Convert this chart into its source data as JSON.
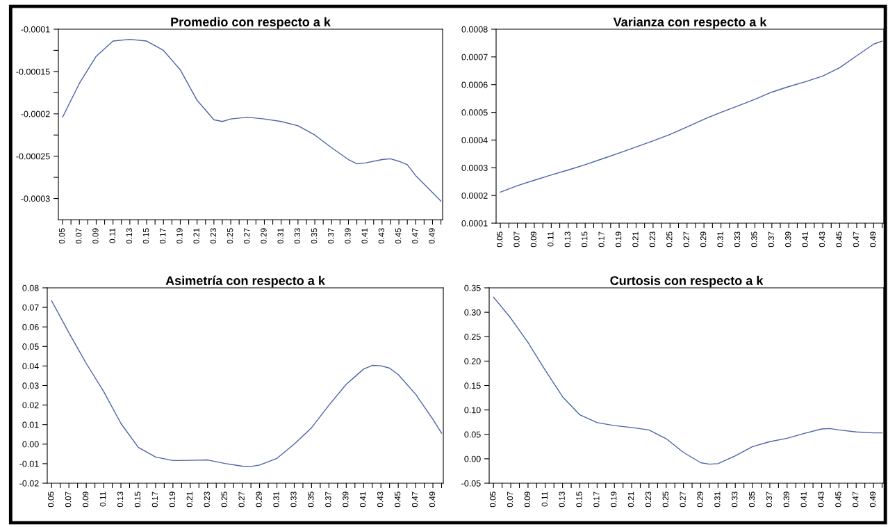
{
  "chart_data": [
    {
      "type": "line",
      "title": "Promedio con respecto a k",
      "x": [
        0.05,
        0.07,
        0.09,
        0.11,
        0.13,
        0.15,
        0.17,
        0.19,
        0.21,
        0.23,
        0.24,
        0.25,
        0.27,
        0.29,
        0.31,
        0.33,
        0.35,
        0.37,
        0.39,
        0.4,
        0.41,
        0.43,
        0.44,
        0.45,
        0.46,
        0.47,
        0.49,
        0.5
      ],
      "series": [
        {
          "color": "#4a62a8",
          "values": [
            -0.000204,
            -0.000164,
            -0.000132,
            -0.000114,
            -0.000112,
            -0.000114,
            -0.000125,
            -0.000148,
            -0.000184,
            -0.000207,
            -0.000209,
            -0.000206,
            -0.000204,
            -0.000206,
            -0.000209,
            -0.000214,
            -0.000225,
            -0.00024,
            -0.000254,
            -0.000259,
            -0.000258,
            -0.000254,
            -0.000253,
            -0.000256,
            -0.00026,
            -0.000273,
            -0.000293,
            -0.000303
          ]
        }
      ],
      "xlim": [
        0.045,
        0.502
      ],
      "xticks": [
        {
          "value": 0.05,
          "label": "0.05"
        },
        {
          "value": 0.06,
          "label": null
        },
        {
          "value": 0.07,
          "label": "0.07"
        },
        {
          "value": 0.08,
          "label": null
        },
        {
          "value": 0.09,
          "label": "0.09"
        },
        {
          "value": 0.1,
          "label": null
        },
        {
          "value": 0.11,
          "label": "0.11"
        },
        {
          "value": 0.12,
          "label": null
        },
        {
          "value": 0.13,
          "label": "0.13"
        },
        {
          "value": 0.14,
          "label": null
        },
        {
          "value": 0.15,
          "label": "0.15"
        },
        {
          "value": 0.16,
          "label": null
        },
        {
          "value": 0.17,
          "label": "0.17"
        },
        {
          "value": 0.18,
          "label": null
        },
        {
          "value": 0.19,
          "label": "0.19"
        },
        {
          "value": 0.2,
          "label": null
        },
        {
          "value": 0.21,
          "label": "0.21"
        },
        {
          "value": 0.22,
          "label": null
        },
        {
          "value": 0.23,
          "label": "0.23"
        },
        {
          "value": 0.24,
          "label": null
        },
        {
          "value": 0.25,
          "label": "0.25"
        },
        {
          "value": 0.26,
          "label": null
        },
        {
          "value": 0.27,
          "label": "0.27"
        },
        {
          "value": 0.28,
          "label": null
        },
        {
          "value": 0.29,
          "label": "0.29"
        },
        {
          "value": 0.3,
          "label": null
        },
        {
          "value": 0.31,
          "label": "0.31"
        },
        {
          "value": 0.32,
          "label": null
        },
        {
          "value": 0.33,
          "label": "0.33"
        },
        {
          "value": 0.34,
          "label": null
        },
        {
          "value": 0.35,
          "label": "0.35"
        },
        {
          "value": 0.36,
          "label": null
        },
        {
          "value": 0.37,
          "label": "0.37"
        },
        {
          "value": 0.38,
          "label": null
        },
        {
          "value": 0.39,
          "label": "0.39"
        },
        {
          "value": 0.4,
          "label": null
        },
        {
          "value": 0.41,
          "label": "0.41"
        },
        {
          "value": 0.42,
          "label": null
        },
        {
          "value": 0.43,
          "label": "0.43"
        },
        {
          "value": 0.44,
          "label": null
        },
        {
          "value": 0.45,
          "label": "0.45"
        },
        {
          "value": 0.46,
          "label": null
        },
        {
          "value": 0.47,
          "label": "0.47"
        },
        {
          "value": 0.48,
          "label": null
        },
        {
          "value": 0.49,
          "label": "0.49"
        },
        {
          "value": 0.5,
          "label": null
        }
      ],
      "ylim": [
        -0.000325,
        -0.0001
      ],
      "yticks": [
        {
          "value": -0.0001,
          "label": "-0.0001"
        },
        {
          "value": -0.000125,
          "label": null
        },
        {
          "value": -0.00015,
          "label": "-0.00015"
        },
        {
          "value": -0.000175,
          "label": null
        },
        {
          "value": -0.0002,
          "label": "-0.0002"
        },
        {
          "value": -0.000225,
          "label": null
        },
        {
          "value": -0.00025,
          "label": "-0.00025"
        },
        {
          "value": -0.000275,
          "label": null
        },
        {
          "value": -0.0003,
          "label": "-0.0003"
        }
      ]
    },
    {
      "type": "line",
      "title": "Varianza con respecto a k",
      "x": [
        0.05,
        0.07,
        0.09,
        0.11,
        0.13,
        0.15,
        0.17,
        0.19,
        0.21,
        0.23,
        0.25,
        0.27,
        0.29,
        0.31,
        0.33,
        0.35,
        0.37,
        0.39,
        0.41,
        0.43,
        0.45,
        0.47,
        0.49,
        0.5
      ],
      "series": [
        {
          "color": "#4a62a8",
          "values": [
            0.000212,
            0.000235,
            0.000255,
            0.000274,
            0.000292,
            0.000311,
            0.000332,
            0.000353,
            0.000375,
            0.000397,
            0.00042,
            0.000447,
            0.000475,
            0.0005,
            0.000523,
            0.000547,
            0.000573,
            0.000593,
            0.000611,
            0.000631,
            0.000661,
            0.000704,
            0.000746,
            0.000757
          ]
        }
      ],
      "xlim": [
        0.045,
        0.502
      ],
      "xticks": [
        {
          "value": 0.05,
          "label": "0.05"
        },
        {
          "value": 0.06,
          "label": null
        },
        {
          "value": 0.07,
          "label": "0.07"
        },
        {
          "value": 0.08,
          "label": null
        },
        {
          "value": 0.09,
          "label": "0.09"
        },
        {
          "value": 0.1,
          "label": null
        },
        {
          "value": 0.11,
          "label": "0.11"
        },
        {
          "value": 0.12,
          "label": null
        },
        {
          "value": 0.13,
          "label": "0.13"
        },
        {
          "value": 0.14,
          "label": null
        },
        {
          "value": 0.15,
          "label": "0.15"
        },
        {
          "value": 0.16,
          "label": null
        },
        {
          "value": 0.17,
          "label": "0.17"
        },
        {
          "value": 0.18,
          "label": null
        },
        {
          "value": 0.19,
          "label": "0.19"
        },
        {
          "value": 0.2,
          "label": null
        },
        {
          "value": 0.21,
          "label": "0.21"
        },
        {
          "value": 0.22,
          "label": null
        },
        {
          "value": 0.23,
          "label": "0.23"
        },
        {
          "value": 0.24,
          "label": null
        },
        {
          "value": 0.25,
          "label": "0.25"
        },
        {
          "value": 0.26,
          "label": null
        },
        {
          "value": 0.27,
          "label": "0.27"
        },
        {
          "value": 0.28,
          "label": null
        },
        {
          "value": 0.29,
          "label": "0.29"
        },
        {
          "value": 0.3,
          "label": null
        },
        {
          "value": 0.31,
          "label": "0.31"
        },
        {
          "value": 0.32,
          "label": null
        },
        {
          "value": 0.33,
          "label": "0.33"
        },
        {
          "value": 0.34,
          "label": null
        },
        {
          "value": 0.35,
          "label": "0.35"
        },
        {
          "value": 0.36,
          "label": null
        },
        {
          "value": 0.37,
          "label": "0.37"
        },
        {
          "value": 0.38,
          "label": null
        },
        {
          "value": 0.39,
          "label": "0.39"
        },
        {
          "value": 0.4,
          "label": null
        },
        {
          "value": 0.41,
          "label": "0.41"
        },
        {
          "value": 0.42,
          "label": null
        },
        {
          "value": 0.43,
          "label": "0.43"
        },
        {
          "value": 0.44,
          "label": null
        },
        {
          "value": 0.45,
          "label": "0.45"
        },
        {
          "value": 0.46,
          "label": null
        },
        {
          "value": 0.47,
          "label": "0.47"
        },
        {
          "value": 0.48,
          "label": null
        },
        {
          "value": 0.49,
          "label": "0.49"
        },
        {
          "value": 0.5,
          "label": null
        }
      ],
      "ylim": [
        0.0001,
        0.0008
      ],
      "yticks": [
        {
          "value": 0.0001,
          "label": "0.0001"
        },
        {
          "value": 0.0002,
          "label": "0.0002"
        },
        {
          "value": 0.0003,
          "label": "0.0003"
        },
        {
          "value": 0.0004,
          "label": "0.0004"
        },
        {
          "value": 0.0005,
          "label": "0.0005"
        },
        {
          "value": 0.0006,
          "label": "0.0006"
        },
        {
          "value": 0.0007,
          "label": "0.0007"
        },
        {
          "value": 0.0008,
          "label": "0.0008"
        }
      ]
    },
    {
      "type": "line",
      "title": "Asimetría con respecto a k",
      "x": [
        0.05,
        0.07,
        0.09,
        0.11,
        0.13,
        0.15,
        0.17,
        0.19,
        0.21,
        0.23,
        0.25,
        0.27,
        0.28,
        0.29,
        0.31,
        0.33,
        0.35,
        0.37,
        0.39,
        0.41,
        0.42,
        0.43,
        0.44,
        0.45,
        0.47,
        0.49,
        0.5
      ],
      "series": [
        {
          "color": "#4a62a8",
          "values": [
            0.0734,
            0.057,
            0.0413,
            0.027,
            0.0106,
            -0.0016,
            -0.0066,
            -0.0084,
            -0.0083,
            -0.0081,
            -0.0099,
            -0.0113,
            -0.0114,
            -0.0107,
            -0.0073,
            0.0,
            0.0084,
            0.0199,
            0.0306,
            0.0384,
            0.0403,
            0.0401,
            0.0389,
            0.0356,
            0.0256,
            0.0127,
            0.0056
          ]
        }
      ],
      "xlim": [
        0.045,
        0.502
      ],
      "xticks": [
        {
          "value": 0.05,
          "label": "0.05"
        },
        {
          "value": 0.06,
          "label": null
        },
        {
          "value": 0.07,
          "label": "0.07"
        },
        {
          "value": 0.08,
          "label": null
        },
        {
          "value": 0.09,
          "label": "0.09"
        },
        {
          "value": 0.1,
          "label": null
        },
        {
          "value": 0.11,
          "label": "0.11"
        },
        {
          "value": 0.12,
          "label": null
        },
        {
          "value": 0.13,
          "label": "0.13"
        },
        {
          "value": 0.14,
          "label": null
        },
        {
          "value": 0.15,
          "label": "0.15"
        },
        {
          "value": 0.16,
          "label": null
        },
        {
          "value": 0.17,
          "label": "0.17"
        },
        {
          "value": 0.18,
          "label": null
        },
        {
          "value": 0.19,
          "label": "0.19"
        },
        {
          "value": 0.2,
          "label": null
        },
        {
          "value": 0.21,
          "label": "0.21"
        },
        {
          "value": 0.22,
          "label": null
        },
        {
          "value": 0.23,
          "label": "0.23"
        },
        {
          "value": 0.24,
          "label": null
        },
        {
          "value": 0.25,
          "label": "0.25"
        },
        {
          "value": 0.26,
          "label": null
        },
        {
          "value": 0.27,
          "label": "0.27"
        },
        {
          "value": 0.28,
          "label": null
        },
        {
          "value": 0.29,
          "label": "0.29"
        },
        {
          "value": 0.3,
          "label": null
        },
        {
          "value": 0.31,
          "label": "0.31"
        },
        {
          "value": 0.32,
          "label": null
        },
        {
          "value": 0.33,
          "label": "0.33"
        },
        {
          "value": 0.34,
          "label": null
        },
        {
          "value": 0.35,
          "label": "0.35"
        },
        {
          "value": 0.36,
          "label": null
        },
        {
          "value": 0.37,
          "label": "0.37"
        },
        {
          "value": 0.38,
          "label": null
        },
        {
          "value": 0.39,
          "label": "0.39"
        },
        {
          "value": 0.4,
          "label": null
        },
        {
          "value": 0.41,
          "label": "0.41"
        },
        {
          "value": 0.42,
          "label": null
        },
        {
          "value": 0.43,
          "label": "0.43"
        },
        {
          "value": 0.44,
          "label": null
        },
        {
          "value": 0.45,
          "label": "0.45"
        },
        {
          "value": 0.46,
          "label": null
        },
        {
          "value": 0.47,
          "label": "0.47"
        },
        {
          "value": 0.48,
          "label": null
        },
        {
          "value": 0.49,
          "label": "0.49"
        },
        {
          "value": 0.5,
          "label": null
        }
      ],
      "ylim": [
        -0.02,
        0.08
      ],
      "yticks": [
        {
          "value": -0.02,
          "label": "-0.02"
        },
        {
          "value": -0.01,
          "label": "-0.01"
        },
        {
          "value": 0.0,
          "label": "0.00"
        },
        {
          "value": 0.01,
          "label": "0.01"
        },
        {
          "value": 0.02,
          "label": "0.02"
        },
        {
          "value": 0.03,
          "label": "0.03"
        },
        {
          "value": 0.04,
          "label": "0.04"
        },
        {
          "value": 0.05,
          "label": "0.05"
        },
        {
          "value": 0.06,
          "label": "0.06"
        },
        {
          "value": 0.07,
          "label": "0.07"
        },
        {
          "value": 0.08,
          "label": "0.08"
        }
      ]
    },
    {
      "type": "line",
      "title": "Curtosis con respecto a k",
      "x": [
        0.05,
        0.07,
        0.09,
        0.11,
        0.13,
        0.15,
        0.17,
        0.19,
        0.21,
        0.23,
        0.25,
        0.27,
        0.29,
        0.3,
        0.31,
        0.33,
        0.35,
        0.37,
        0.39,
        0.41,
        0.43,
        0.44,
        0.45,
        0.47,
        0.49,
        0.5
      ],
      "series": [
        {
          "color": "#4a62a8",
          "values": [
            0.331,
            0.288,
            0.238,
            0.181,
            0.127,
            0.09,
            0.074,
            0.068,
            0.064,
            0.059,
            0.041,
            0.013,
            -0.008,
            -0.011,
            -0.01,
            0.006,
            0.025,
            0.035,
            0.042,
            0.052,
            0.061,
            0.062,
            0.059,
            0.055,
            0.053,
            0.053
          ]
        }
      ],
      "xlim": [
        0.045,
        0.502
      ],
      "xticks": [
        {
          "value": 0.05,
          "label": "0.05"
        },
        {
          "value": 0.06,
          "label": null
        },
        {
          "value": 0.07,
          "label": "0.07"
        },
        {
          "value": 0.08,
          "label": null
        },
        {
          "value": 0.09,
          "label": "0.09"
        },
        {
          "value": 0.1,
          "label": null
        },
        {
          "value": 0.11,
          "label": "0.11"
        },
        {
          "value": 0.12,
          "label": null
        },
        {
          "value": 0.13,
          "label": "0.13"
        },
        {
          "value": 0.14,
          "label": null
        },
        {
          "value": 0.15,
          "label": "0.15"
        },
        {
          "value": 0.16,
          "label": null
        },
        {
          "value": 0.17,
          "label": "0.17"
        },
        {
          "value": 0.18,
          "label": null
        },
        {
          "value": 0.19,
          "label": "0.19"
        },
        {
          "value": 0.2,
          "label": null
        },
        {
          "value": 0.21,
          "label": "0.21"
        },
        {
          "value": 0.22,
          "label": null
        },
        {
          "value": 0.23,
          "label": "0.23"
        },
        {
          "value": 0.24,
          "label": null
        },
        {
          "value": 0.25,
          "label": "0.25"
        },
        {
          "value": 0.26,
          "label": null
        },
        {
          "value": 0.27,
          "label": "0.27"
        },
        {
          "value": 0.28,
          "label": null
        },
        {
          "value": 0.29,
          "label": "0.29"
        },
        {
          "value": 0.3,
          "label": null
        },
        {
          "value": 0.31,
          "label": "0.31"
        },
        {
          "value": 0.32,
          "label": null
        },
        {
          "value": 0.33,
          "label": "0.33"
        },
        {
          "value": 0.34,
          "label": null
        },
        {
          "value": 0.35,
          "label": "0.35"
        },
        {
          "value": 0.36,
          "label": null
        },
        {
          "value": 0.37,
          "label": "0.37"
        },
        {
          "value": 0.38,
          "label": null
        },
        {
          "value": 0.39,
          "label": "0.39"
        },
        {
          "value": 0.4,
          "label": null
        },
        {
          "value": 0.41,
          "label": "0.41"
        },
        {
          "value": 0.42,
          "label": null
        },
        {
          "value": 0.43,
          "label": "0.43"
        },
        {
          "value": 0.44,
          "label": null
        },
        {
          "value": 0.45,
          "label": "0.45"
        },
        {
          "value": 0.46,
          "label": null
        },
        {
          "value": 0.47,
          "label": "0.47"
        },
        {
          "value": 0.48,
          "label": null
        },
        {
          "value": 0.49,
          "label": "0.49"
        },
        {
          "value": 0.5,
          "label": null
        }
      ],
      "ylim": [
        -0.05,
        0.35
      ],
      "yticks": [
        {
          "value": -0.05,
          "label": "-0.05"
        },
        {
          "value": 0.0,
          "label": "0.00"
        },
        {
          "value": 0.05,
          "label": "0.05"
        },
        {
          "value": 0.1,
          "label": "0.10"
        },
        {
          "value": 0.15,
          "label": "0.15"
        },
        {
          "value": 0.2,
          "label": "0.20"
        },
        {
          "value": 0.25,
          "label": "0.25"
        },
        {
          "value": 0.3,
          "label": "0.30"
        },
        {
          "value": 0.35,
          "label": "0.35"
        }
      ]
    }
  ]
}
